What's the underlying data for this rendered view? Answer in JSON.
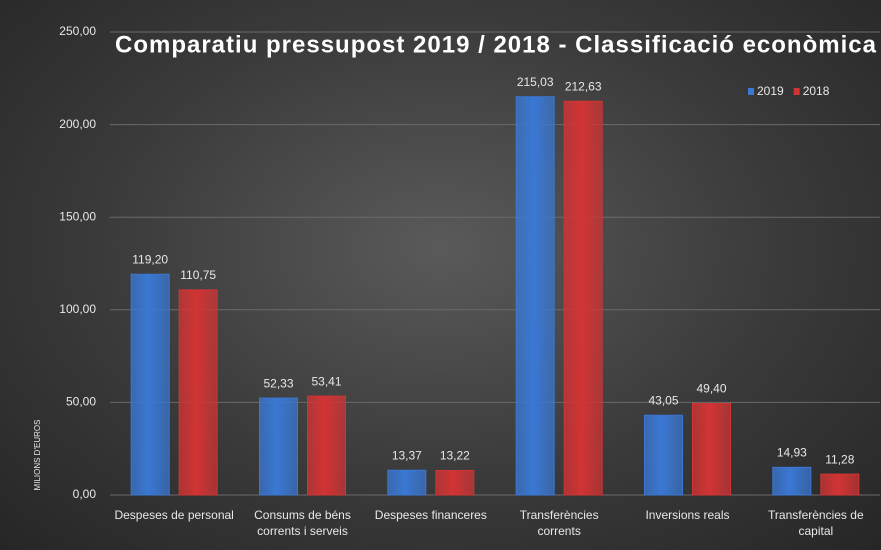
{
  "chart_data": {
    "type": "bar",
    "title": "Comparatiu pressupost 2019 / 2018 - Classificació econòmica",
    "y_label": "MILIONS D'EUROS",
    "categories": [
      "Despeses de personal",
      "Consums de béns corrents i serveis",
      "Despeses financeres",
      "Transferències corrents",
      "Inversions reals",
      "Transferències de capital"
    ],
    "series": [
      {
        "name": "2019",
        "color": "#3a78d4",
        "values": [
          119.2,
          52.33,
          13.37,
          215.03,
          43.05,
          14.93
        ],
        "value_labels": [
          "119,20",
          "52,33",
          "13,37",
          "215,03",
          "43,05",
          "14,93"
        ]
      },
      {
        "name": "2018",
        "color": "#d23434",
        "values": [
          110.75,
          53.41,
          13.22,
          212.63,
          49.4,
          11.28
        ],
        "value_labels": [
          "110,75",
          "53,41",
          "13,22",
          "212,63",
          "49,40",
          "11,28"
        ]
      }
    ],
    "ylim": [
      0,
      250
    ],
    "yticks": [
      {
        "value": 0,
        "label": "0,00"
      },
      {
        "value": 50,
        "label": "50,00"
      },
      {
        "value": 100,
        "label": "100,00"
      },
      {
        "value": 150,
        "label": "150,00"
      },
      {
        "value": 200,
        "label": "200,00"
      },
      {
        "value": 250,
        "label": "250,00"
      }
    ],
    "grid": true,
    "legend": "top-right"
  }
}
